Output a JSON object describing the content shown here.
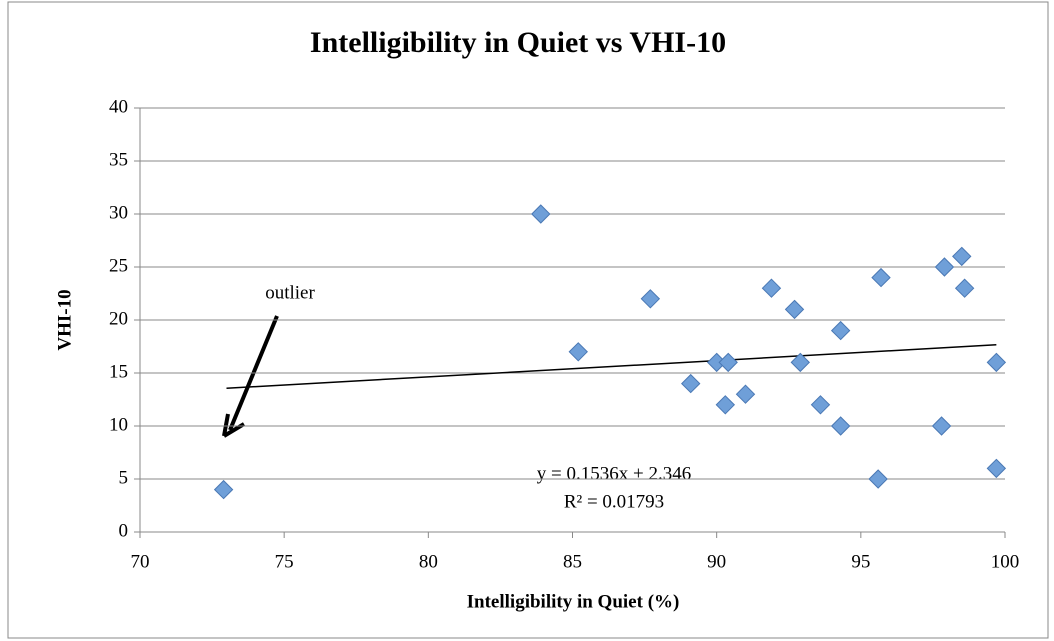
{
  "chart_data": {
    "type": "scatter",
    "title": "Intelligibility in Quiet vs VHI-10",
    "x_label": "Intelligibility in Quiet (%)",
    "y_label": "VHI-10",
    "x": [
      83.9,
      85.2,
      87.7,
      89.1,
      90.0,
      90.4,
      90.3,
      91.0,
      91.9,
      92.7,
      92.9,
      93.6,
      94.3,
      94.3,
      95.7,
      95.6,
      97.9,
      98.5,
      98.6,
      97.8,
      99.7,
      99.7,
      72.9
    ],
    "values": [
      30,
      17,
      22,
      14,
      16,
      16,
      12,
      13,
      23,
      21,
      16,
      12,
      19,
      10,
      24,
      5,
      25,
      26,
      23,
      10,
      16,
      6,
      4
    ],
    "color": "#6f9fd8",
    "xlim": [
      70,
      100
    ],
    "xticks": [
      70,
      75,
      80,
      85,
      90,
      95,
      100
    ],
    "ylim": [
      0,
      40
    ],
    "yticks": [
      0,
      5,
      10,
      15,
      20,
      25,
      30,
      35,
      40
    ],
    "grid": true,
    "trendline": {
      "slope": 0.1536,
      "intercept": 2.346,
      "x_range": [
        73,
        99.7
      ]
    },
    "equation": "y = 0.1536x + 2.346",
    "r_squared": "R² = 0.01793",
    "annotation": "outlier"
  }
}
